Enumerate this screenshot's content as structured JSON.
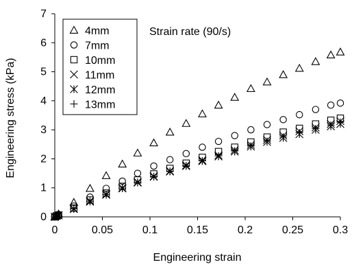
{
  "chart_data": {
    "type": "scatter",
    "xlabel": "Engineering strain",
    "ylabel": "Engineering stress (kPa)",
    "xlim": [
      0,
      0.3
    ],
    "ylim": [
      0,
      7
    ],
    "xticks": [
      0,
      0.05,
      0.1,
      0.15,
      0.2,
      0.25,
      0.3
    ],
    "xtick_labels": [
      "0",
      "0.05",
      "0.1",
      "0.15",
      "0.2",
      "0.25",
      "0.3"
    ],
    "yticks": [
      0,
      1,
      2,
      3,
      4,
      5,
      6,
      7
    ],
    "ytick_labels": [
      "0",
      "1",
      "2",
      "3",
      "4",
      "5",
      "6",
      "7"
    ],
    "grid": false,
    "legend_position": "top-left",
    "annotation": "Strain rate (90/s)",
    "series": [
      {
        "name": "4mm",
        "marker": "triangle",
        "x": [
          0.0,
          0.002,
          0.004,
          0.02,
          0.037,
          0.054,
          0.071,
          0.087,
          0.104,
          0.121,
          0.138,
          0.155,
          0.172,
          0.189,
          0.206,
          0.223,
          0.24,
          0.257,
          0.274,
          0.29,
          0.3
        ],
        "y": [
          0.0,
          0.05,
          0.1,
          0.5,
          0.98,
          1.42,
          1.82,
          2.2,
          2.55,
          2.92,
          3.22,
          3.55,
          3.85,
          4.12,
          4.42,
          4.65,
          4.9,
          5.12,
          5.35,
          5.58,
          5.68
        ]
      },
      {
        "name": "7mm",
        "marker": "circle",
        "x": [
          0.0,
          0.002,
          0.004,
          0.02,
          0.037,
          0.054,
          0.071,
          0.087,
          0.104,
          0.121,
          0.138,
          0.155,
          0.172,
          0.189,
          0.206,
          0.223,
          0.24,
          0.257,
          0.274,
          0.29,
          0.3
        ],
        "y": [
          0.0,
          0.04,
          0.08,
          0.37,
          0.68,
          0.98,
          1.23,
          1.5,
          1.75,
          1.97,
          2.18,
          2.4,
          2.6,
          2.8,
          3.0,
          3.18,
          3.35,
          3.52,
          3.7,
          3.85,
          3.92
        ]
      },
      {
        "name": "10mm",
        "marker": "square",
        "x": [
          0.0,
          0.002,
          0.004,
          0.02,
          0.037,
          0.054,
          0.071,
          0.087,
          0.104,
          0.121,
          0.138,
          0.155,
          0.172,
          0.189,
          0.206,
          0.223,
          0.24,
          0.257,
          0.274,
          0.29,
          0.3
        ],
        "y": [
          0.0,
          0.03,
          0.06,
          0.3,
          0.58,
          0.82,
          1.05,
          1.27,
          1.48,
          1.67,
          1.85,
          2.05,
          2.25,
          2.4,
          2.58,
          2.75,
          2.92,
          3.05,
          3.2,
          3.33,
          3.4
        ]
      },
      {
        "name": "11mm",
        "marker": "x",
        "x": [
          0.0,
          0.002,
          0.004,
          0.02,
          0.037,
          0.054,
          0.071,
          0.087,
          0.104,
          0.121,
          0.138,
          0.155,
          0.172,
          0.189,
          0.206,
          0.223,
          0.24,
          0.257,
          0.274,
          0.29,
          0.3
        ],
        "y": [
          0.0,
          0.03,
          0.05,
          0.28,
          0.55,
          0.78,
          1.0,
          1.2,
          1.4,
          1.58,
          1.78,
          1.95,
          2.12,
          2.3,
          2.48,
          2.65,
          2.8,
          2.95,
          3.08,
          3.2,
          3.3
        ]
      },
      {
        "name": "12mm",
        "marker": "asterisk",
        "x": [
          0.0,
          0.002,
          0.004,
          0.02,
          0.037,
          0.054,
          0.071,
          0.087,
          0.104,
          0.121,
          0.138,
          0.155,
          0.172,
          0.189,
          0.206,
          0.223,
          0.24,
          0.257,
          0.274,
          0.29,
          0.3
        ],
        "y": [
          0.0,
          0.03,
          0.05,
          0.27,
          0.52,
          0.76,
          0.98,
          1.18,
          1.38,
          1.56,
          1.75,
          1.92,
          2.08,
          2.25,
          2.42,
          2.58,
          2.72,
          2.85,
          3.0,
          3.12,
          3.2
        ]
      },
      {
        "name": "13mm",
        "marker": "plus",
        "x": [
          0.0,
          0.002,
          0.004,
          0.02,
          0.037,
          0.054,
          0.071,
          0.087,
          0.104,
          0.121,
          0.138,
          0.155,
          0.172,
          0.189,
          0.206,
          0.223,
          0.24,
          0.257,
          0.274,
          0.29,
          0.3
        ],
        "y": [
          0.0,
          0.03,
          0.05,
          0.28,
          0.54,
          0.77,
          0.99,
          1.19,
          1.39,
          1.57,
          1.76,
          1.93,
          2.1,
          2.27,
          2.44,
          2.6,
          2.75,
          2.9,
          3.04,
          3.16,
          3.26
        ]
      }
    ]
  }
}
